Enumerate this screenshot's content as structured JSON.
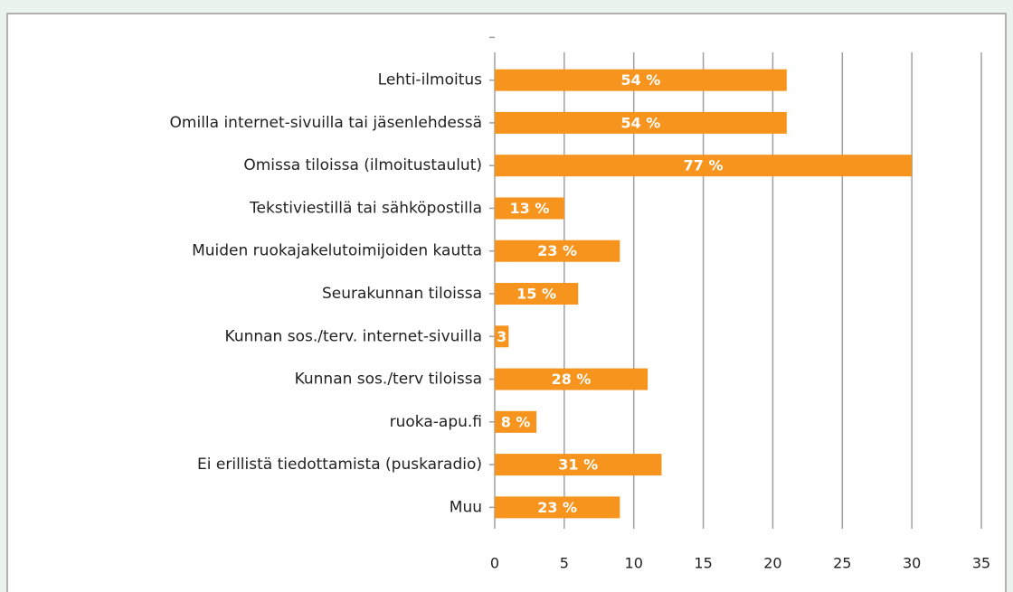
{
  "chart_data": {
    "type": "barh",
    "categories": [
      "Lehti-ilmoitus",
      "Omilla internet-sivuilla tai jäsenlehdessä",
      "Omissa tiloissa (ilmoitustaulut)",
      "Tekstiviestillä tai sähköpostilla",
      "Muiden ruokajakelutoimijoiden kautta",
      "Seurakunnan tiloissa",
      "Kunnan sos./terv. internet-sivuilla",
      "Kunnan sos./terv tiloissa",
      "ruoka-apu.fi",
      "Ei erillistä tiedottamista (puskaradio)",
      "Muu"
    ],
    "values": [
      21,
      21,
      30,
      5,
      9,
      6,
      1,
      11,
      3,
      12,
      9
    ],
    "value_labels": [
      "54 %",
      "54 %",
      "77 %",
      "13 %",
      "23 %",
      "15 %",
      "3",
      "28 %",
      "8 %",
      "31 %",
      "23 %"
    ],
    "color": "#f7941d",
    "xlim": [
      0,
      35
    ],
    "xticks": [
      0,
      5,
      10,
      15,
      20,
      25,
      30,
      35
    ],
    "grid": true
  }
}
